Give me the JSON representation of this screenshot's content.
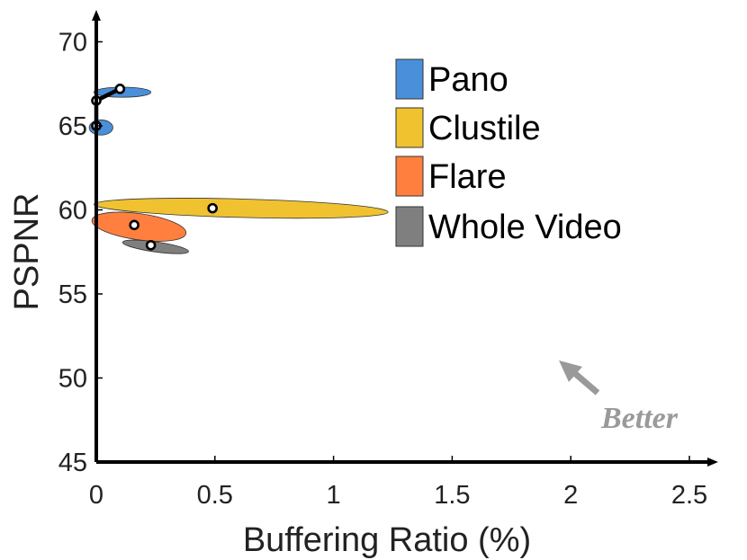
{
  "chart_data": {
    "type": "scatter",
    "xlabel": "Buffering Ratio (%)",
    "ylabel": "PSPNR",
    "xlim": [
      0,
      2.7
    ],
    "ylim": [
      45,
      71.5
    ],
    "x_ticks": [
      0,
      0.5,
      1,
      1.5,
      2,
      2.5
    ],
    "x_tick_labels": [
      "0",
      "0.5",
      "1",
      "1.5",
      "2",
      "2.5"
    ],
    "y_ticks": [
      45,
      50,
      55,
      60,
      65,
      70
    ],
    "y_tick_labels": [
      "45",
      "50",
      "55",
      "60",
      "65",
      "70"
    ],
    "grid": false,
    "legend_position": "top-right",
    "series": [
      {
        "name": "Pano",
        "color": "#4a8fd9",
        "points": [
          {
            "x": 0.0,
            "y": 66.5
          },
          {
            "x": 0.1,
            "y": 67.2
          }
        ],
        "ellipses": [
          {
            "cx": 0.11,
            "cy": 67.0,
            "rx": 0.12,
            "ry": 0.3,
            "rotation": 0
          },
          {
            "cx": 0.02,
            "cy": 64.9,
            "rx": 0.05,
            "ry": 0.45,
            "rotation": 0
          }
        ]
      },
      {
        "name": "Clustile",
        "color": "#f0c230",
        "points": [
          {
            "x": 0.49,
            "y": 60.1
          }
        ],
        "ellipses": [
          {
            "cx": 0.61,
            "cy": 60.1,
            "rx": 0.62,
            "ry": 0.55,
            "rotation": 1.5
          }
        ]
      },
      {
        "name": "Flare",
        "color": "#ff7f3f",
        "points": [
          {
            "x": 0.16,
            "y": 59.1
          }
        ],
        "ellipses": [
          {
            "cx": 0.18,
            "cy": 59.0,
            "rx": 0.2,
            "ry": 0.78,
            "rotation": 8
          }
        ]
      },
      {
        "name": "Whole Video",
        "color": "#7f7f7f",
        "points": [
          {
            "x": 0.0,
            "y": 65.0
          },
          {
            "x": 0.23,
            "y": 57.9
          }
        ],
        "ellipses": [
          {
            "cx": 0.25,
            "cy": 57.8,
            "rx": 0.14,
            "ry": 0.3,
            "rotation": 8
          }
        ]
      }
    ],
    "trajectory": [
      {
        "x": 0.0,
        "y": 65.0
      },
      {
        "x": 0.0,
        "y": 66.5
      },
      {
        "x": 0.1,
        "y": 67.2
      }
    ],
    "annotations": [
      {
        "text": "Better",
        "arrow_direction": "up-left",
        "x": 2.1,
        "y": 51.0
      }
    ]
  }
}
